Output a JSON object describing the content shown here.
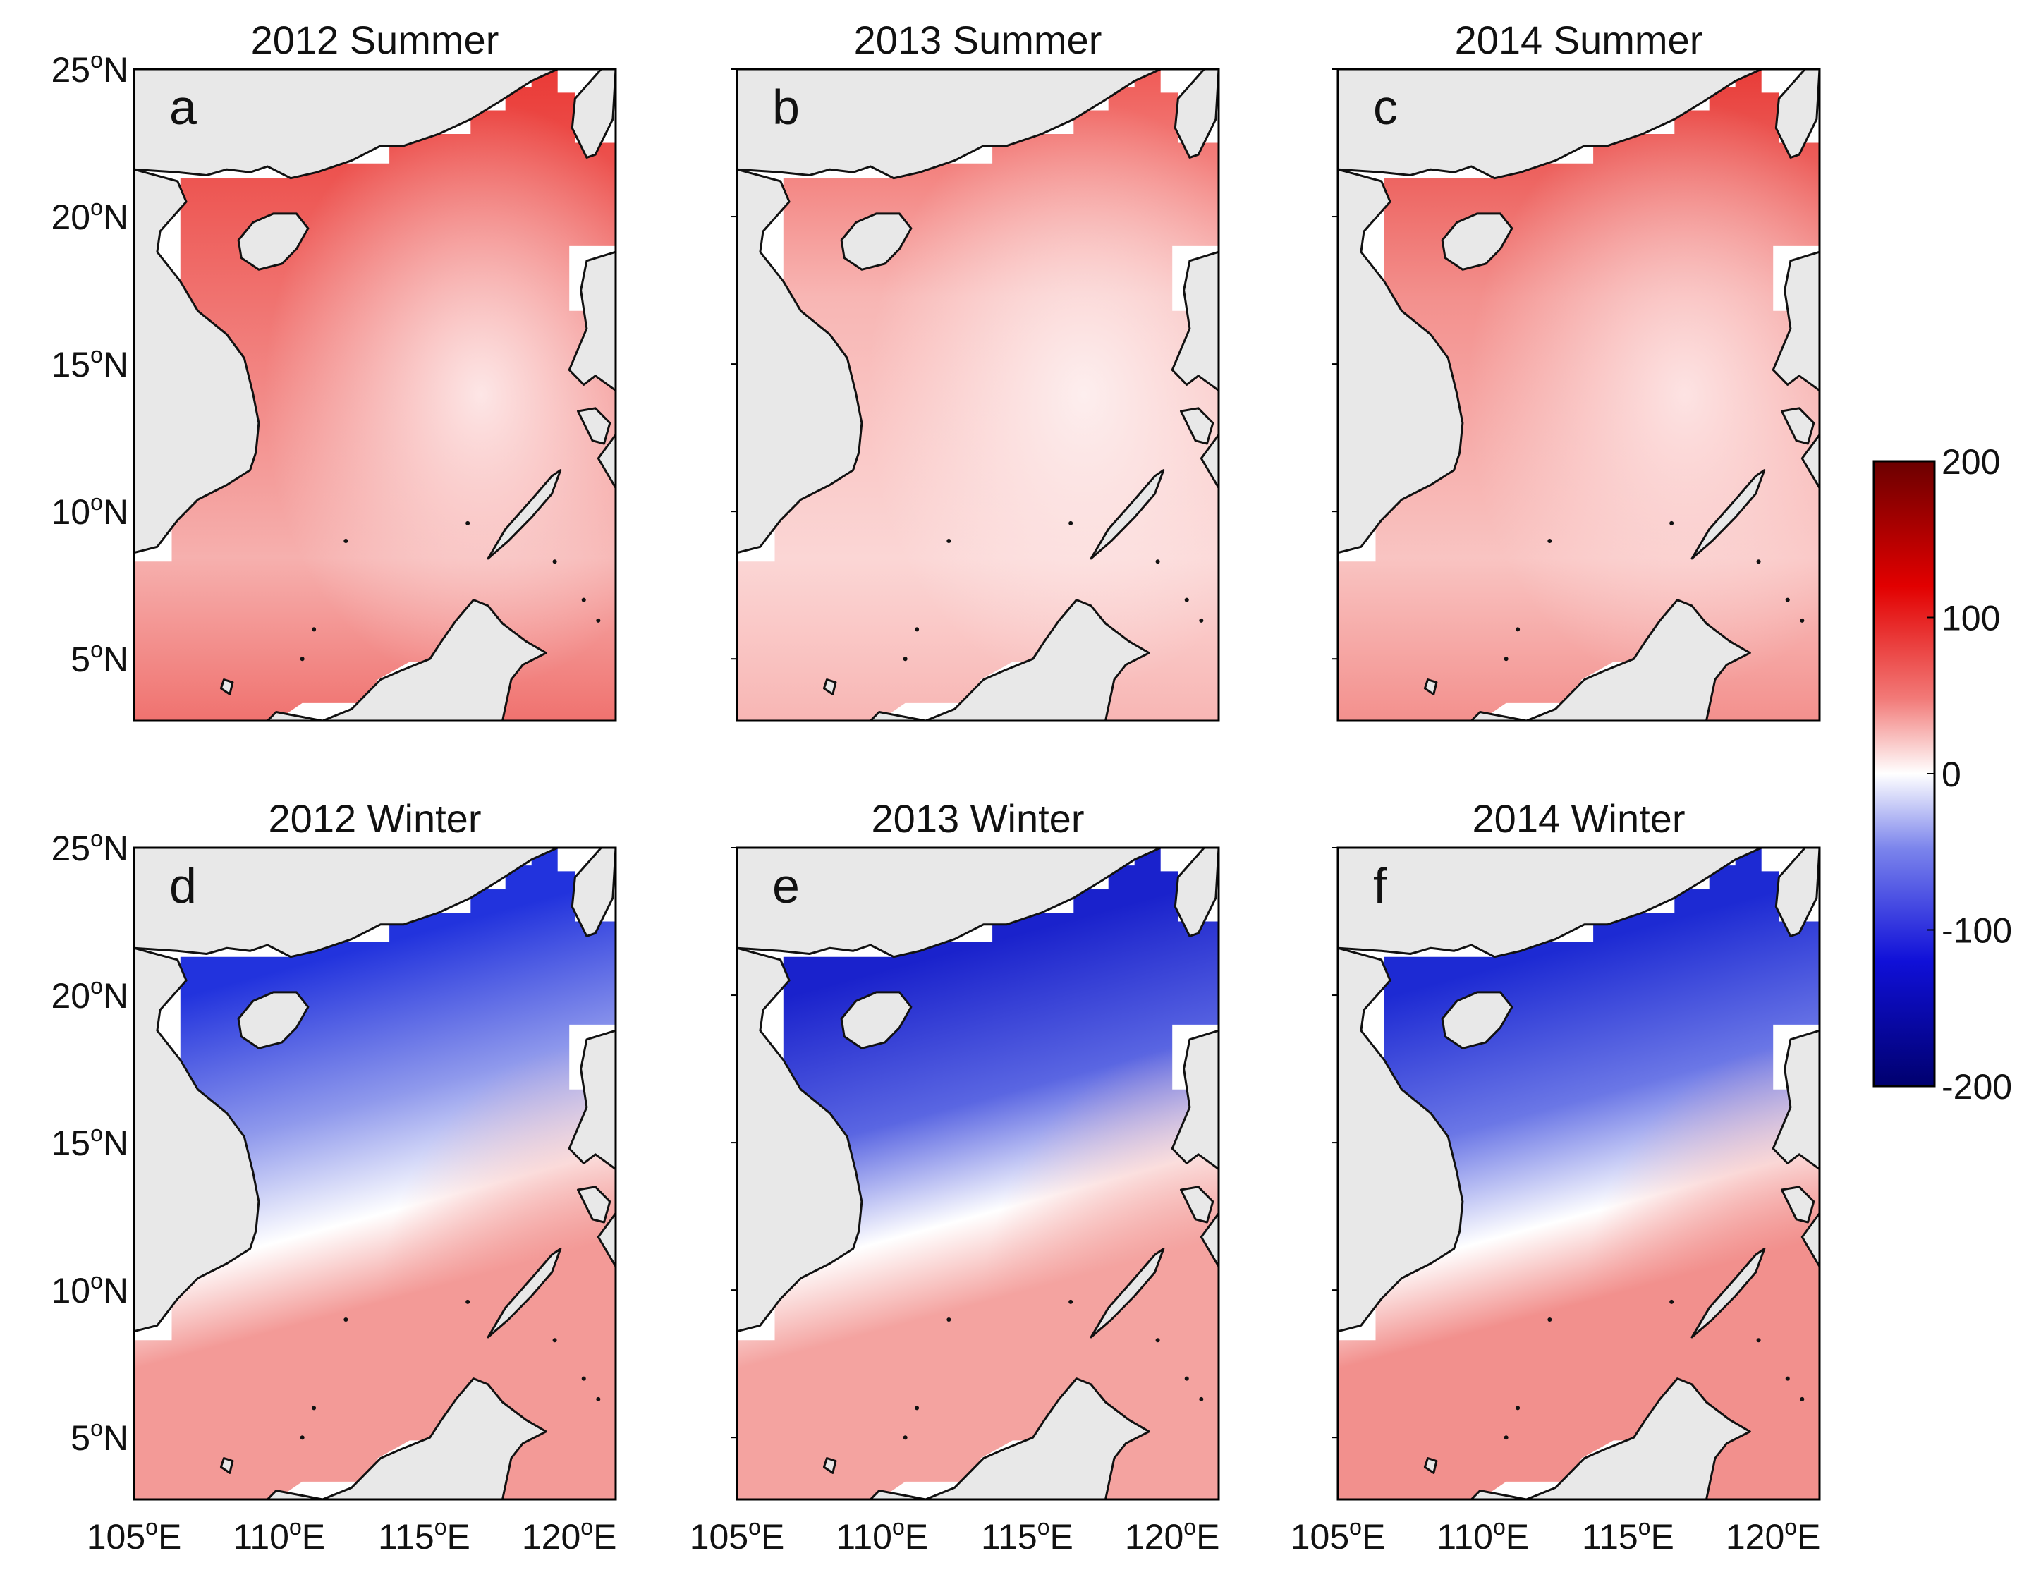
{
  "figure": {
    "panels": [
      {
        "id": "a",
        "title": "2012 Summer",
        "season": "summer",
        "field": {
          "base": "#f0726f",
          "center": "#fde6e6",
          "north": "#ea3a36",
          "south": "#f6b0ae"
        }
      },
      {
        "id": "b",
        "title": "2013 Summer",
        "season": "summer",
        "field": {
          "base": "#f8b6b4",
          "center": "#fdeeee",
          "north": "#ef5a56",
          "south": "#fbd6d5"
        }
      },
      {
        "id": "c",
        "title": "2014 Summer",
        "season": "summer",
        "field": {
          "base": "#f3908d",
          "center": "#fde3e3",
          "north": "#e83c38",
          "south": "#f9c4c2"
        }
      },
      {
        "id": "d",
        "title": "2012 Winter",
        "season": "winter",
        "field": {
          "north": "#2233dd",
          "mid": "#8f99ec",
          "zero": "#ffffff",
          "south": "#f39a97"
        }
      },
      {
        "id": "e",
        "title": "2013 Winter",
        "season": "winter",
        "field": {
          "north": "#1a22cc",
          "mid": "#5a66e2",
          "zero": "#ffffff",
          "south": "#f4a3a0"
        }
      },
      {
        "id": "f",
        "title": "2014 Winter",
        "season": "winter",
        "field": {
          "north": "#1d2ad3",
          "mid": "#6b77e6",
          "zero": "#ffffff",
          "south": "#f2908d"
        }
      }
    ],
    "lat_ticks": [
      {
        "deg": "25",
        "unit": "N"
      },
      {
        "deg": "20",
        "unit": "N"
      },
      {
        "deg": "15",
        "unit": "N"
      },
      {
        "deg": "10",
        "unit": "N"
      },
      {
        "deg": "5",
        "unit": "N"
      }
    ],
    "lon_ticks": [
      {
        "deg": "105",
        "unit": "E"
      },
      {
        "deg": "110",
        "unit": "E"
      },
      {
        "deg": "115",
        "unit": "E"
      },
      {
        "deg": "120",
        "unit": "E"
      }
    ],
    "degree_symbol": "o",
    "colorbar": {
      "min": -200,
      "max": 200,
      "tick_labels": [
        "200",
        "100",
        "0",
        "-100",
        "-200"
      ],
      "colors": [
        "#6b0000",
        "#e20000",
        "#f27a78",
        "#ffffff",
        "#7b84ec",
        "#1010d8",
        "#00006e"
      ]
    },
    "colors": {
      "land": "#e8e8e8",
      "coast": "#111111",
      "frame": "#000000",
      "nodata": "#ffffff"
    }
  }
}
